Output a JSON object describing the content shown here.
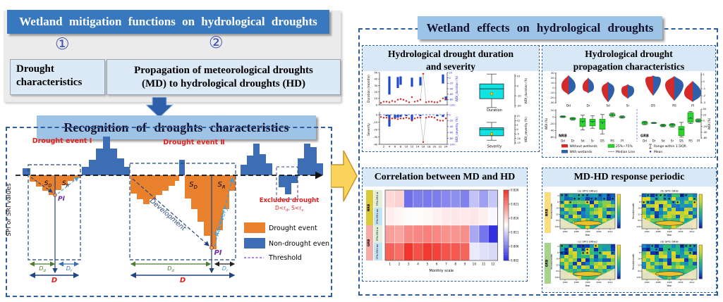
{
  "left": {
    "title": "Wetland mitigation functions on hydrological droughts",
    "step1": "①",
    "step2": "②",
    "box1": "Drought characteristics",
    "box2_line1": "Propagation of meteorological droughts",
    "box2_line2": "(MD) to hydrological droughts (HD)",
    "banner": "Recognition of droughts characteristics"
  },
  "right": {
    "title": "Wetland effects on hydrological droughts",
    "panel1_title_l1": "Hydrological drought duration",
    "panel1_title_l2": "and severity",
    "panel2_title_l1": "Hydrological drought",
    "panel2_title_l2": "propagation characteristics",
    "panel3_title": "Correlation between MD and HD",
    "panel4_title": "MD-HD response periodic"
  },
  "chart_data": {
    "drought_diagram": {
      "type": "bar",
      "y_axis_label": "SPI or SRI values",
      "event1_label": "Drought event I",
      "event2_label": "Drought event Ⅱ",
      "excluded_line1": "Excluded drought",
      "excluded_line2": [
        [
          "D<r",
          "d"
        ],
        [
          ", S<r",
          "s"
        ]
      ],
      "development": "Development",
      "recovery": "Recovery",
      "pi": "PI",
      "sd": [
        "S",
        "D"
      ],
      "sr": [
        "S",
        "R"
      ],
      "dd": [
        "D",
        "d"
      ],
      "dr": [
        "D",
        "r"
      ],
      "d": "D",
      "legend": [
        {
          "label": "Drought event",
          "color": "#E8802C",
          "style": "box"
        },
        {
          "label": "Non-drought event",
          "color": "#3D6EB5",
          "style": "box"
        },
        {
          "label": "Threshold",
          "color": "#8B5CF6",
          "style": "dashed"
        }
      ],
      "colors": {
        "drought": "#E8802C",
        "nondrought": "#3D6EB5"
      },
      "bars": [
        {
          "x": 24,
          "w": 11,
          "v": 10,
          "c": "nd"
        },
        {
          "x": 34,
          "w": 9,
          "v": -9,
          "c": "d"
        },
        {
          "x": 43,
          "w": 9,
          "v": -16,
          "c": "d"
        },
        {
          "x": 52,
          "w": 9,
          "v": -22,
          "c": "d"
        },
        {
          "x": 61,
          "w": 9,
          "v": -28,
          "c": "d"
        },
        {
          "x": 70,
          "w": 9,
          "v": -21,
          "c": "d"
        },
        {
          "x": 79,
          "w": 9,
          "v": -14,
          "c": "d"
        },
        {
          "x": 88,
          "w": 9,
          "v": -8,
          "c": "d"
        },
        {
          "x": 97,
          "w": 9,
          "v": -4,
          "c": "d"
        },
        {
          "x": 108,
          "w": 10,
          "v": 12,
          "c": "nd"
        },
        {
          "x": 118,
          "w": 10,
          "v": 22,
          "c": "nd"
        },
        {
          "x": 128,
          "w": 10,
          "v": 38,
          "c": "nd"
        },
        {
          "x": 138,
          "w": 10,
          "v": 55,
          "c": "nd"
        },
        {
          "x": 148,
          "w": 10,
          "v": 38,
          "c": "nd"
        },
        {
          "x": 158,
          "w": 10,
          "v": 24,
          "c": "nd"
        },
        {
          "x": 168,
          "w": 8,
          "v": 12,
          "c": "nd"
        },
        {
          "x": 177,
          "w": 9,
          "v": -26,
          "c": "d"
        },
        {
          "x": 186,
          "w": 9,
          "v": -34,
          "c": "d"
        },
        {
          "x": 195,
          "w": 9,
          "v": -41,
          "c": "d"
        },
        {
          "x": 204,
          "w": 9,
          "v": -34,
          "c": "d"
        },
        {
          "x": 213,
          "w": 9,
          "v": -28,
          "c": "d"
        },
        {
          "x": 222,
          "w": 9,
          "v": -22,
          "c": "d"
        },
        {
          "x": 231,
          "w": 9,
          "v": -15,
          "c": "d"
        },
        {
          "x": 240,
          "w": 6,
          "v": -8,
          "c": "d"
        },
        {
          "x": 246,
          "w": 8,
          "v": 22,
          "c": "nd"
        },
        {
          "x": 254,
          "w": 9,
          "v": -33,
          "c": "d"
        },
        {
          "x": 263,
          "w": 9,
          "v": -48,
          "c": "d"
        },
        {
          "x": 272,
          "w": 9,
          "v": -66,
          "c": "d"
        },
        {
          "x": 281,
          "w": 9,
          "v": -86,
          "c": "d"
        },
        {
          "x": 290,
          "w": 9,
          "v": -105,
          "c": "d"
        },
        {
          "x": 299,
          "w": 9,
          "v": -78,
          "c": "d"
        },
        {
          "x": 308,
          "w": 9,
          "v": -48,
          "c": "d"
        },
        {
          "x": 317,
          "w": 9,
          "v": -22,
          "c": "d"
        },
        {
          "x": 333,
          "w": 9,
          "v": 15,
          "c": "nd"
        },
        {
          "x": 342,
          "w": 9,
          "v": 28,
          "c": "nd"
        },
        {
          "x": 351,
          "w": 9,
          "v": 45,
          "c": "nd"
        },
        {
          "x": 360,
          "w": 9,
          "v": 30,
          "c": "nd"
        },
        {
          "x": 369,
          "w": 9,
          "v": 17,
          "c": "nd"
        },
        {
          "x": 387,
          "w": 9,
          "v": -17,
          "c": "ex"
        },
        {
          "x": 396,
          "w": 9,
          "v": -27,
          "c": "ex"
        },
        {
          "x": 405,
          "w": 9,
          "v": -11,
          "c": "ex"
        },
        {
          "x": 414,
          "w": 9,
          "v": 24,
          "c": "nd"
        },
        {
          "x": 423,
          "w": 9,
          "v": 45,
          "c": "nd"
        },
        {
          "x": 432,
          "w": 9,
          "v": 40,
          "c": "nd"
        },
        {
          "x": 441,
          "w": 9,
          "v": 17,
          "c": "nd"
        }
      ]
    },
    "duration_severity": {
      "type": "bar+scatter+boxplot",
      "x_ticks": [
        2,
        4,
        6,
        8,
        10,
        12,
        14,
        16,
        18,
        20,
        22,
        24
      ],
      "duration": {
        "ylabel": "Duration (months)",
        "yticks": [
          0,
          10,
          20,
          30,
          40,
          50
        ],
        "right_label": "WDI_duration (%)",
        "right_ticks": [
          20,
          0,
          -20,
          -40,
          -60,
          -80,
          -100
        ],
        "bars": [
          {
            "x": 4,
            "lo": 16,
            "hi": 44
          },
          {
            "x": 7,
            "lo": 26,
            "hi": 43
          },
          {
            "x": 8,
            "lo": 31,
            "hi": 44
          },
          {
            "x": 12,
            "lo": 28,
            "hi": 42
          },
          {
            "x": 15,
            "lo": 30,
            "hi": 43
          },
          {
            "x": 23,
            "lo": 33,
            "hi": 47
          },
          {
            "x": 24,
            "lo": 7,
            "hi": 13
          }
        ],
        "dots": [
          3,
          5,
          5,
          4,
          6,
          5,
          8,
          9,
          8,
          6,
          4,
          12,
          5,
          6,
          8,
          48,
          4,
          5,
          5,
          4,
          4,
          6,
          10,
          9
        ],
        "box": {
          "label": "Duration",
          "right_label": "WDI_duration (%)",
          "right_ticks": [
            10,
            0,
            -10,
            -20
          ],
          "q1": -13,
          "q3": 2,
          "median": -3,
          "mean": -8,
          "lo": -22,
          "hi": 12
        }
      },
      "severity": {
        "ylabel": "Severity",
        "yticks": [
          0,
          -10,
          -20,
          -30,
          -40
        ],
        "right_label": "WDI_severity (%)",
        "right_ticks": [
          0,
          -20,
          -40,
          -60,
          -80,
          -100
        ],
        "bars": [
          {
            "x": 3,
            "v": -2
          },
          {
            "x": 4,
            "v": -16
          },
          {
            "x": 6,
            "v": -5
          },
          {
            "x": 7,
            "v": -4
          },
          {
            "x": 8,
            "v": -3
          },
          {
            "x": 10,
            "v": -2
          },
          {
            "x": 12,
            "v": -8
          },
          {
            "x": 15,
            "v": -2
          },
          {
            "x": 21,
            "v": -2
          },
          {
            "x": 23,
            "v": -3
          }
        ],
        "dots": [
          -3,
          -4,
          -4,
          -6,
          -5,
          -5,
          -6,
          -5,
          -5,
          -4,
          -5,
          -8,
          -5,
          -4,
          -4,
          -37,
          -4,
          -3,
          -3,
          -4,
          -7,
          -8,
          -8,
          -5
        ],
        "box": {
          "label": "Severity",
          "right_label": "WDI_severity (%)",
          "right_ticks": [
            15,
            10,
            5,
            0,
            -5,
            -10,
            -15
          ],
          "q1": -7,
          "q3": 2,
          "median": 0,
          "mean": -5,
          "lo": -12,
          "hi": 8
        }
      }
    },
    "propagation": {
      "type": "violin+boxplot",
      "categories": [
        "Dd",
        "Dr",
        "Sd",
        "Sr",
        "DS",
        "RS",
        "PI"
      ],
      "violins": [
        {
          "cat": "Dd",
          "scale": "left",
          "max": 26,
          "min": -14,
          "mode": 4,
          "w": 10
        },
        {
          "cat": "Dr",
          "scale": "left",
          "max": 21,
          "min": -11,
          "mode": 2,
          "w": 8
        },
        {
          "cat": "Sd",
          "scale": "left",
          "max": 13,
          "min": -29,
          "mode": -3,
          "w": 9
        },
        {
          "cat": "Sr",
          "scale": "left",
          "max": 8,
          "min": -22,
          "mode": -5,
          "w": 9
        },
        {
          "cat": "DS",
          "scale": "right",
          "max": 0.9,
          "min": -2.0,
          "mode": 0.2,
          "w": 11
        },
        {
          "cat": "RS",
          "scale": "right",
          "max": 0.8,
          "min": -2.7,
          "mode": -0.5,
          "w": 13
        },
        {
          "cat": "PI",
          "scale": "right",
          "max": 0.1,
          "min": -2.9,
          "mode": -1.6,
          "w": 12
        }
      ],
      "violin_left_ticks": [
        30,
        20,
        10,
        0,
        -10,
        -20,
        -30
      ],
      "violin_right_ticks": [
        1,
        0,
        -1,
        -2,
        -3
      ],
      "box_left_label": "WDI (%)",
      "box_right_label": "WDI (%)",
      "nrb_ticks": [
        20,
        0,
        -20,
        -40,
        -60
      ],
      "grb_ticks": [
        40,
        20,
        0,
        -20,
        -40,
        -60
      ],
      "group_labels": [
        "NRB",
        "GRB"
      ],
      "NRB": [
        {
          "cat": "Dd",
          "q1": 0,
          "q3": 3,
          "lo": -1,
          "hi": 4,
          "med": 1.5,
          "mean": 1.5
        },
        {
          "cat": "Dr",
          "q1": -7,
          "q3": -2,
          "lo": -9,
          "hi": -1,
          "med": -4,
          "mean": -4
        },
        {
          "cat": "Sd",
          "q1": -28,
          "q3": -4,
          "lo": -38,
          "hi": 6,
          "med": -12,
          "mean": -14
        },
        {
          "cat": "Sr",
          "q1": -26,
          "q3": -6,
          "lo": -33,
          "hi": 4,
          "med": -13,
          "mean": -14
        },
        {
          "cat": "DS",
          "q1": -36,
          "q3": -6,
          "lo": -50,
          "hi": 8,
          "med": -14,
          "mean": -18
        },
        {
          "cat": "RS",
          "q1": 4,
          "q3": 10,
          "lo": 1,
          "hi": 13,
          "med": 7,
          "mean": 7
        },
        {
          "cat": "PI",
          "q1": -1,
          "q3": 2,
          "lo": -3,
          "hi": 4,
          "med": 0.5,
          "mean": 0.5
        }
      ],
      "GRB": [
        {
          "cat": "Dd",
          "q1": -12,
          "q3": -4,
          "lo": -14,
          "hi": -2,
          "med": -8,
          "mean": -8
        },
        {
          "cat": "Dr",
          "q1": -9,
          "q3": -7,
          "lo": -10,
          "hi": -6,
          "med": -8,
          "mean": -8
        },
        {
          "cat": "Sd",
          "q1": -19,
          "q3": -14,
          "lo": -21,
          "hi": -12,
          "med": -17,
          "mean": -17
        },
        {
          "cat": "Sr",
          "q1": -19,
          "q3": -12,
          "lo": -22,
          "hi": -10,
          "med": -15,
          "mean": -15
        },
        {
          "cat": "DS",
          "q1": -52,
          "q3": -20,
          "lo": -57,
          "hi": -6,
          "med": -30,
          "mean": -30
        },
        {
          "cat": "RS",
          "q1": -6,
          "q3": 28,
          "lo": -10,
          "hi": 32,
          "med": 8,
          "mean": 10
        },
        {
          "cat": "PI",
          "q1": -3,
          "q3": 4,
          "lo": -5,
          "hi": 6,
          "med": 0,
          "mean": 0
        }
      ],
      "legend": {
        "without": "Without wetlands",
        "with": "With wetlands",
        "iqr": "25%~75%",
        "median": "Median Line",
        "range": "Range within 1.5IQR",
        "mean": "Mean"
      },
      "colors": {
        "without": "#D42A2A",
        "with": "#2E5FA8",
        "box": "#2FD32F"
      }
    },
    "correlation_heatmap": {
      "type": "heatmap",
      "x_label": "Monthly scale",
      "x_ticks": [
        1,
        2,
        3,
        4,
        5,
        6,
        7,
        8,
        9,
        10,
        11,
        12
      ],
      "groups": [
        {
          "label": "NRB",
          "color": "#DCC937"
        },
        {
          "label": "GRB",
          "color": "#F4ACA7"
        }
      ],
      "rows": [
        {
          "label": "SPIn-SRI1-w",
          "group": "NRB",
          "bg": "#E2EFDA",
          "values": [
            0.8162,
            0.8166,
            0.8058,
            0.8066,
            0.8064,
            0.8066,
            0.8072,
            0.8076,
            0.8068,
            0.8105,
            0.8085,
            0.8108
          ]
        },
        {
          "label": "SPIn-SRI1-wo",
          "group": "NRB",
          "bg": "#C5E4F3",
          "values": [
            0.815,
            0.8146,
            0.8138,
            0.8142,
            0.8144,
            0.8148,
            0.8152,
            0.8154,
            0.8152,
            0.8154,
            0.815,
            0.8136
          ]
        },
        {
          "label": "SPIn-SRI1-w",
          "group": "GRB",
          "bg": "#E2EFDA",
          "values": [
            0.8196,
            0.8192,
            0.8208,
            0.821,
            0.8214,
            0.821,
            0.8204,
            0.8202,
            0.8206,
            0.809,
            0.8062,
            0.8022
          ]
        },
        {
          "label": "SPIn-SRI1-wo",
          "group": "GRB",
          "bg": "#C5E4F3",
          "values": [
            0.8232,
            0.8224,
            0.8258,
            0.8242,
            0.8256,
            0.825,
            0.824,
            0.8238,
            0.823,
            0.8128,
            0.8122,
            0.8118
          ]
        }
      ],
      "vmin": 0.802,
      "vmax": 0.826,
      "colorbar_ticks": [
        "0.826",
        "0.821",
        "0.816",
        "0.811",
        "0.806",
        "0.802"
      ]
    },
    "wavelet": {
      "type": "heatmap",
      "row_labels": [
        {
          "label": "NRB",
          "color": "#F8DE7E"
        },
        {
          "label": "GRB",
          "color": "#A9D18E"
        }
      ],
      "plots": [
        {
          "title": "(a) SPI1-SRIwo"
        },
        {
          "title": "(b) SPI1-SRIw"
        },
        {
          "title": "(c) SPI1-SRIwo"
        },
        {
          "title": "(d) SPI1-SRIw"
        }
      ],
      "x_label": "Year",
      "y_label": "Period/month",
      "x_ticks": [
        1980,
        1988,
        1996,
        2004,
        2012
      ],
      "y_ticks": [
        4,
        8,
        16,
        32,
        64,
        128
      ]
    }
  }
}
